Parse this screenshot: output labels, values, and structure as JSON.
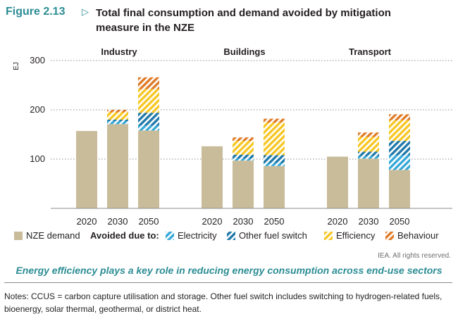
{
  "figure": {
    "number": "Figure 2.13",
    "arrow": "▷",
    "title": "Total final consumption and demand avoided by mitigation measure in the NZE"
  },
  "chart_data": {
    "type": "bar",
    "stacked": true,
    "unit_label": "EJ",
    "ylim": [
      0,
      320
    ],
    "yticks": [
      100,
      200,
      300
    ],
    "grid": true,
    "legend_position": "bottom",
    "legend_avoided_prefix": "Avoided due to:",
    "colors": {
      "NZE demand": "#c9bc9a",
      "Electricity": "#35a8d8",
      "Other fuel switch": "#1f79a9",
      "Efficiency": "#f7c724",
      "Behaviour": "#e07b27"
    },
    "series_order": [
      "NZE demand",
      "Electricity",
      "Other fuel switch",
      "Efficiency",
      "Behaviour"
    ],
    "panels": [
      {
        "title": "Industry",
        "categories": [
          "2020",
          "2030",
          "2050"
        ],
        "series": [
          {
            "name": "NZE demand",
            "values": [
              157,
              171,
              158
            ]
          },
          {
            "name": "Electricity",
            "values": [
              0,
              6,
              10
            ]
          },
          {
            "name": "Other fuel switch",
            "values": [
              0,
              3,
              26
            ]
          },
          {
            "name": "Efficiency",
            "values": [
              0,
              15,
              48
            ]
          },
          {
            "name": "Behaviour",
            "values": [
              0,
              5,
              24
            ]
          }
        ]
      },
      {
        "title": "Buildings",
        "categories": [
          "2020",
          "2030",
          "2050"
        ],
        "series": [
          {
            "name": "NZE demand",
            "values": [
              126,
              97,
              86
            ]
          },
          {
            "name": "Electricity",
            "values": [
              0,
              4,
              6
            ]
          },
          {
            "name": "Other fuel switch",
            "values": [
              0,
              8,
              16
            ]
          },
          {
            "name": "Efficiency",
            "values": [
              0,
              28,
              66
            ]
          },
          {
            "name": "Behaviour",
            "values": [
              0,
              7,
              8
            ]
          }
        ]
      },
      {
        "title": "Transport",
        "categories": [
          "2020",
          "2030",
          "2050"
        ],
        "series": [
          {
            "name": "NZE demand",
            "values": [
              105,
              101,
              78
            ]
          },
          {
            "name": "Electricity",
            "values": [
              0,
              5,
              30
            ]
          },
          {
            "name": "Other fuel switch",
            "values": [
              0,
              9,
              29
            ]
          },
          {
            "name": "Efficiency",
            "values": [
              0,
              30,
              42
            ]
          },
          {
            "name": "Behaviour",
            "values": [
              0,
              9,
              12
            ]
          }
        ]
      }
    ]
  },
  "credit": "IEA. All rights reserved.",
  "key_message": "Energy efficiency plays a key role in reducing energy consumption across end-use sectors",
  "notes": "Notes: CCUS = carbon capture utilisation and storage. Other fuel switch includes switching to hydrogen-related fuels, bioenergy, solar thermal, geothermal, or district heat."
}
